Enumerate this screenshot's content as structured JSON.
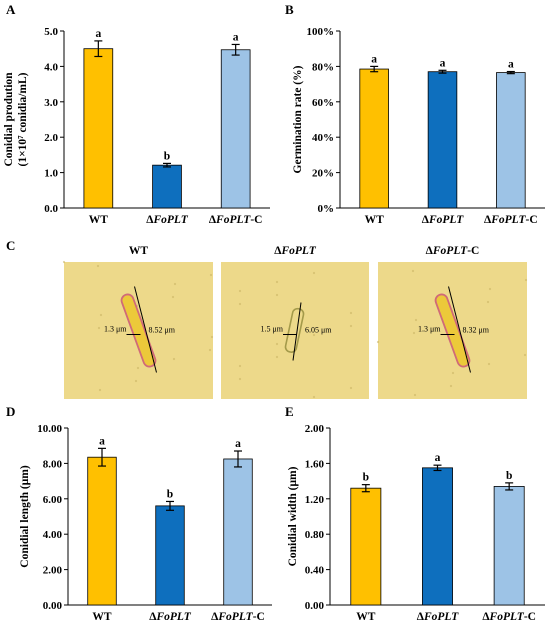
{
  "panels": {
    "A": "A",
    "B": "B",
    "C": "C",
    "D": "D",
    "E": "E"
  },
  "categories": [
    {
      "base": "WT",
      "italic": "",
      "suffix": ""
    },
    {
      "base": "Δ",
      "italic": "FoPLT",
      "suffix": ""
    },
    {
      "base": "Δ",
      "italic": "FoPLT",
      "suffix": "-C"
    }
  ],
  "colors": {
    "WT": "#FFC000",
    "dFoPLT": "#0E6FBE",
    "dFoPLT_C": "#9DC3E6",
    "micro_bg": "#EDD98A"
  },
  "chart_data": [
    {
      "id": "A",
      "type": "bar",
      "categories": [
        "WT",
        "ΔFoPLT",
        "ΔFoPLT-C"
      ],
      "values": [
        4.5,
        1.21,
        4.47
      ],
      "errors": [
        0.22,
        0.05,
        0.15
      ],
      "significance": [
        "a",
        "b",
        "a"
      ],
      "ylabel": [
        "Conidial prodution",
        "(1×10⁷ conidia/mL)"
      ],
      "ylim": [
        0,
        5
      ],
      "yticks": [
        "0.0",
        "1.0",
        "2.0",
        "3.0",
        "4.0",
        "5.0"
      ],
      "grid": false
    },
    {
      "id": "B",
      "type": "bar",
      "categories": [
        "WT",
        "ΔFoPLT",
        "ΔFoPLT-C"
      ],
      "values": [
        78.5,
        77.0,
        76.5
      ],
      "errors": [
        1.5,
        0.8,
        0.6
      ],
      "significance": [
        "a",
        "a",
        "a"
      ],
      "ylabel": [
        "Germination rate (%)"
      ],
      "ylim": [
        0,
        100
      ],
      "yticks": [
        "0%",
        "20%",
        "40%",
        "60%",
        "80%",
        "100%"
      ],
      "grid": false
    },
    {
      "id": "D",
      "type": "bar",
      "categories": [
        "WT",
        "ΔFoPLT",
        "ΔFoPLT-C"
      ],
      "values": [
        8.35,
        5.6,
        8.25
      ],
      "errors": [
        0.5,
        0.25,
        0.45
      ],
      "significance": [
        "a",
        "b",
        "a"
      ],
      "ylabel": [
        "Conidial length (μm)"
      ],
      "ylim": [
        0,
        10
      ],
      "yticks": [
        "0.00",
        "2.00",
        "4.00",
        "6.00",
        "8.00",
        "10.00"
      ],
      "grid": false
    },
    {
      "id": "E",
      "type": "bar",
      "categories": [
        "WT",
        "ΔFoPLT",
        "ΔFoPLT-C"
      ],
      "values": [
        1.32,
        1.55,
        1.34
      ],
      "errors": [
        0.04,
        0.03,
        0.04
      ],
      "significance": [
        "b",
        "a",
        "b"
      ],
      "ylabel": [
        "Conidial width (μm)"
      ],
      "ylim": [
        0,
        2
      ],
      "yticks": [
        "0.00",
        "0.40",
        "0.80",
        "1.20",
        "1.60",
        "2.00"
      ],
      "grid": false
    }
  ],
  "micrographs": [
    {
      "title": "WT",
      "width_label": "1.3 μm",
      "length_label": "8.52 μm"
    },
    {
      "title": "ΔFoPLT",
      "width_label": "1.5 μm",
      "length_label": "6.05 μm"
    },
    {
      "title": "ΔFoPLT-C",
      "width_label": "1.3 μm",
      "length_label": "8.32 μm"
    }
  ]
}
